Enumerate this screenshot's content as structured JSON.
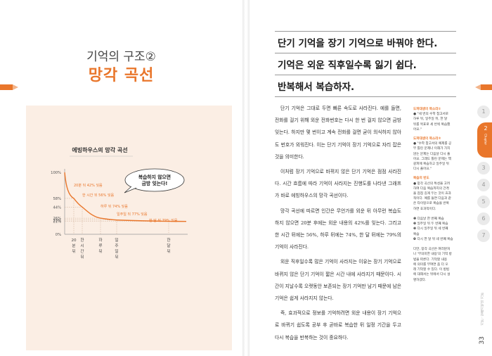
{
  "left_page": {
    "title_sub": "기억의 구조②",
    "title_main": "망각 곡선"
  },
  "chart_data": {
    "type": "line",
    "title": "에빙하우스의 망각 곡선",
    "xlabel": "",
    "ylabel": "",
    "y_ticks": [
      "100%",
      "58%",
      "44%",
      "26%",
      "23%",
      "21%",
      "0%"
    ],
    "x_labels": [
      "20분 뒤",
      "한 시간 뒤",
      "하루 뒤",
      "일주일 뒤",
      "한 달 뒤"
    ],
    "x": [
      "0분",
      "20분 뒤",
      "한 시간 뒤",
      "하루 뒤",
      "일주일 뒤",
      "한 달 뒤"
    ],
    "series": [
      {
        "values": [
          100,
          58,
          44,
          26,
          23,
          21
        ]
      }
    ],
    "annotations": [
      "20분 뒤 42% 잊음",
      "한 시간 뒤 56% 잊음",
      "하루 뒤 74% 잊음",
      "일주일 뒤 77% 잊음",
      "한 달 뒤 79% 잊음"
    ],
    "callout": [
      "복습하지 않으면",
      "금방 잊는다!"
    ],
    "ylim": [
      0,
      100
    ],
    "grid": true,
    "color": "#e9762b"
  },
  "right_page": {
    "headlines": [
      "단기 기억을 장기 기억으로 바꿔야 한다.",
      "기억은 외운 직후일수록 잃기 쉽다.",
      "반복해서 복습하자."
    ],
    "paragraphs": [
      "단기 기억은 그대로 두면 빠른 속도로 사라진다. 예를 들면, 전화를 걸기 위해 외운 전화번호는 다시 한 번 걸지 않으면 금방 잊는다. 하지만 몇 번이고 계속 전화를 걸면 굳이 의식하지 않아도 번호가 외워진다. 이는 단기 기억이 장기 기억으로 자리 잡은 것을 의미한다.",
      "이처럼 장기 기억으로 바뀌지 않은 단기 기억은 점점 사라진다. 시간 흐름에 따라 기억이 사라지는 진행도를 나타낸 그래프가 바로 에빙하우스의 망각 곡선이다.",
      "망각 곡선에 따르면 인간은 무언가를 외운 뒤 아무런 복습도 하지 않으면 20분 후에는 외운 내용의 42%를 잊는다. 그리고 한 시간 뒤에는 56%, 하루 뒤에는 74%, 한 달 뒤에는 79%의 기억이 사라진다.",
      "외운 직후일수록 많은 기억이 사라지는 이유는 장기 기억으로 바뀌지 않은 단기 기억이 짧은 시간 내에 사라지기 때문이다. 시간이 지날수록 오랫동안 보존되는 장기 기억만 남기 때문에 남은 기억은 쉽게 사라지지 않는다.",
      "즉, 효과적으로 정보를 기억하려면 외운 내용이 장기 기억으로 바뀌기 쉽도록 공부 후 곧바로 복습한 뒤 일정 기간을 두고 다시 복습을 반복하는 것이 중요하다."
    ],
    "sidebar": [
      {
        "head": "도파대생의 목소리①",
        "lines": [
          "● \"세 번의 수학 참고서로",
          "하루 뒤, 일주일 뒤, 한 달",
          "뒤를 목표로 세 번씩 복습했",
          "어요.\""
        ]
      },
      {
        "head": "도파대생의 목소리②",
        "lines": [
          "● \"수학 참고서의 예제를 공",
          "부 틀린 문제나 이해가 가지",
          "않는 문제는 다음날 다시 풀",
          "어요. 그래도 틀린 문제는 책",
          "갈피에 복습하고 일주일 뒤",
          "다시 풀어요.\""
        ]
      },
      {
        "head": "복습의 빈도",
        "lines": [
          "● 망각 곡선의 특성을 고려",
          "하여 다음 복습까지의 간격",
          "을 점점 길게 두는 것이 효과",
          "적이다. 예를 들면 다음과 같",
          "은 타이밍으로 복습을 반복",
          "하면 효과적이다.",
          "",
          "❶ 다음날 한 번째 복습",
          "❷ 일주일 뒤 두 번째 복습",
          "❸ 다시 일주일 뒤 세 번째",
          "복습",
          "❹ 다시 한 달 뒤 네 번째 복습",
          "",
          "다만, 망각 곡선은 여러분처",
          "나 '무의미한 내용'의 기억 방",
          "법을 따른다. 기억할 내용",
          "에 의미를 부여면 좀 더 오",
          "래 기억할 수 있다. 이 방법",
          "에 대해서는 뒤에서 다시 설",
          "명하겠다."
        ]
      }
    ],
    "tabs": [
      "1",
      "2",
      "3",
      "4",
      "5",
      "6",
      "7"
    ],
    "active_tab": "2",
    "active_tab_label": "Chapter",
    "running_head": "기본 · 일래기억의 기본",
    "page_number": "33"
  }
}
